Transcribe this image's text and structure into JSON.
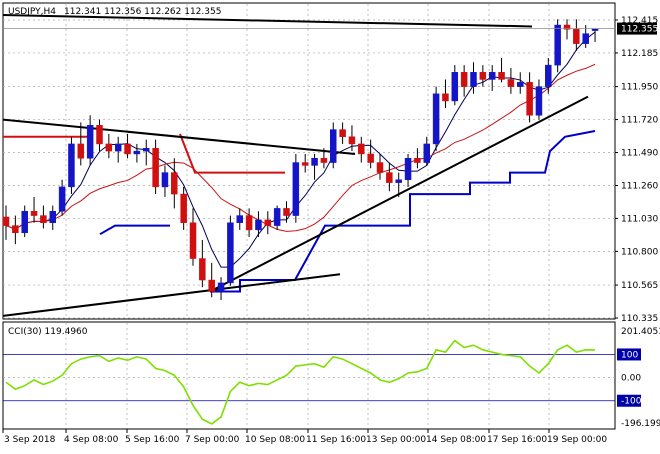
{
  "header": {
    "symbol_text": "USDJPY,H4",
    "ohlc_text": "112.341 112.356 112.262 112.355"
  },
  "price_panel": {
    "ticks": [
      "112.415",
      "112.185",
      "111.950",
      "111.720",
      "111.490",
      "111.260",
      "111.030",
      "110.800",
      "110.565",
      "110.335"
    ],
    "last_price_label": "112.355"
  },
  "cci_panel": {
    "label": "CCI(30) 119.4960",
    "ticks": [
      "201.4051",
      "100",
      "0.00",
      "-100",
      "-196.1996"
    ]
  },
  "x_axis": {
    "labels": [
      "3 Sep 2018",
      "4 Sep 08:00",
      "5 Sep 16:00",
      "7 Sep 00:00",
      "10 Sep 08:00",
      "11 Sep 16:00",
      "13 Sep 00:00",
      "14 Sep 08:00",
      "17 Sep 16:00",
      "19 Sep 00:00"
    ]
  },
  "colors": {
    "bull": "#1515c8",
    "bear": "#d01010",
    "ma_fast": "#00005a",
    "ma_slow": "#c81414",
    "support": "#0000c8",
    "resistance": "#d01010",
    "cci": "#7fe000",
    "grid": "#a8a8a8",
    "level": "#0000aa"
  },
  "chart_data": {
    "type": "candlestick",
    "symbol": "USDJPY",
    "timeframe": "H4",
    "last_bar": {
      "open": 112.341,
      "high": 112.356,
      "low": 112.262,
      "close": 112.355
    },
    "ylim": [
      110.335,
      112.415
    ],
    "ohlc": [
      [
        111.04,
        111.12,
        110.88,
        110.98
      ],
      [
        110.98,
        111.05,
        110.85,
        110.93
      ],
      [
        110.93,
        111.12,
        110.9,
        111.08
      ],
      [
        111.08,
        111.18,
        111.0,
        111.05
      ],
      [
        111.05,
        111.12,
        110.96,
        111.0
      ],
      [
        111.0,
        111.12,
        110.95,
        111.08
      ],
      [
        111.08,
        111.3,
        111.05,
        111.25
      ],
      [
        111.25,
        111.6,
        111.2,
        111.55
      ],
      [
        111.55,
        111.7,
        111.4,
        111.45
      ],
      [
        111.45,
        111.75,
        111.4,
        111.68
      ],
      [
        111.68,
        111.72,
        111.5,
        111.55
      ],
      [
        111.55,
        111.62,
        111.45,
        111.5
      ],
      [
        111.5,
        111.6,
        111.42,
        111.55
      ],
      [
        111.55,
        111.62,
        111.45,
        111.48
      ],
      [
        111.48,
        111.55,
        111.42,
        111.5
      ],
      [
        111.5,
        111.58,
        111.4,
        111.52
      ],
      [
        111.52,
        111.58,
        111.2,
        111.25
      ],
      [
        111.25,
        111.4,
        111.18,
        111.35
      ],
      [
        111.35,
        111.45,
        111.1,
        111.2
      ],
      [
        111.2,
        111.25,
        110.95,
        111.0
      ],
      [
        111.0,
        111.1,
        110.7,
        110.75
      ],
      [
        110.75,
        110.88,
        110.55,
        110.6
      ],
      [
        110.6,
        110.72,
        110.48,
        110.52
      ],
      [
        110.52,
        110.62,
        110.46,
        110.58
      ],
      [
        110.58,
        111.05,
        110.56,
        111.0
      ],
      [
        111.0,
        111.1,
        110.95,
        111.05
      ],
      [
        111.05,
        111.1,
        110.9,
        110.95
      ],
      [
        110.95,
        111.08,
        110.9,
        111.02
      ],
      [
        111.02,
        111.08,
        110.92,
        110.98
      ],
      [
        110.98,
        111.12,
        110.95,
        111.1
      ],
      [
        111.1,
        111.15,
        111.0,
        111.05
      ],
      [
        111.05,
        111.48,
        111.0,
        111.42
      ],
      [
        111.42,
        111.48,
        111.35,
        111.4
      ],
      [
        111.4,
        111.48,
        111.3,
        111.45
      ],
      [
        111.45,
        111.52,
        111.38,
        111.42
      ],
      [
        111.42,
        111.7,
        111.38,
        111.65
      ],
      [
        111.65,
        111.7,
        111.55,
        111.6
      ],
      [
        111.6,
        111.68,
        111.5,
        111.55
      ],
      [
        111.55,
        111.6,
        111.42,
        111.48
      ],
      [
        111.48,
        111.58,
        111.38,
        111.42
      ],
      [
        111.42,
        111.48,
        111.3,
        111.35
      ],
      [
        111.35,
        111.42,
        111.22,
        111.28
      ],
      [
        111.28,
        111.35,
        111.18,
        111.3
      ],
      [
        111.3,
        111.48,
        111.25,
        111.45
      ],
      [
        111.45,
        111.52,
        111.38,
        111.42
      ],
      [
        111.42,
        111.6,
        111.4,
        111.55
      ],
      [
        111.55,
        111.95,
        111.5,
        111.9
      ],
      [
        111.9,
        112.0,
        111.8,
        111.85
      ],
      [
        111.85,
        112.1,
        111.82,
        112.05
      ],
      [
        112.05,
        112.1,
        111.88,
        111.95
      ],
      [
        111.95,
        112.12,
        111.9,
        112.05
      ],
      [
        112.05,
        112.1,
        111.95,
        112.0
      ],
      [
        112.0,
        112.1,
        111.92,
        112.05
      ],
      [
        112.05,
        112.15,
        111.98,
        112.0
      ],
      [
        112.0,
        112.08,
        111.9,
        111.95
      ],
      [
        111.95,
        112.05,
        111.9,
        111.98
      ],
      [
        111.98,
        112.05,
        111.7,
        111.75
      ],
      [
        111.75,
        112.0,
        111.72,
        111.95
      ],
      [
        111.95,
        112.15,
        111.9,
        112.1
      ],
      [
        112.1,
        112.42,
        112.05,
        112.38
      ],
      [
        112.38,
        112.42,
        112.28,
        112.35
      ],
      [
        112.35,
        112.42,
        112.2,
        112.25
      ],
      [
        112.25,
        112.38,
        112.22,
        112.32
      ],
      [
        112.341,
        112.356,
        112.262,
        112.355
      ]
    ],
    "cci": [
      -20,
      -50,
      -35,
      -10,
      -30,
      -15,
      10,
      60,
      80,
      90,
      95,
      70,
      85,
      75,
      90,
      80,
      40,
      30,
      10,
      -40,
      -120,
      -180,
      -200,
      -170,
      -60,
      -20,
      -35,
      -25,
      -30,
      -10,
      10,
      50,
      55,
      60,
      45,
      90,
      80,
      60,
      40,
      20,
      -10,
      -20,
      -5,
      20,
      25,
      40,
      120,
      110,
      160,
      130,
      140,
      120,
      110,
      100,
      95,
      90,
      50,
      20,
      60,
      120,
      140,
      110,
      120,
      119.496
    ]
  }
}
